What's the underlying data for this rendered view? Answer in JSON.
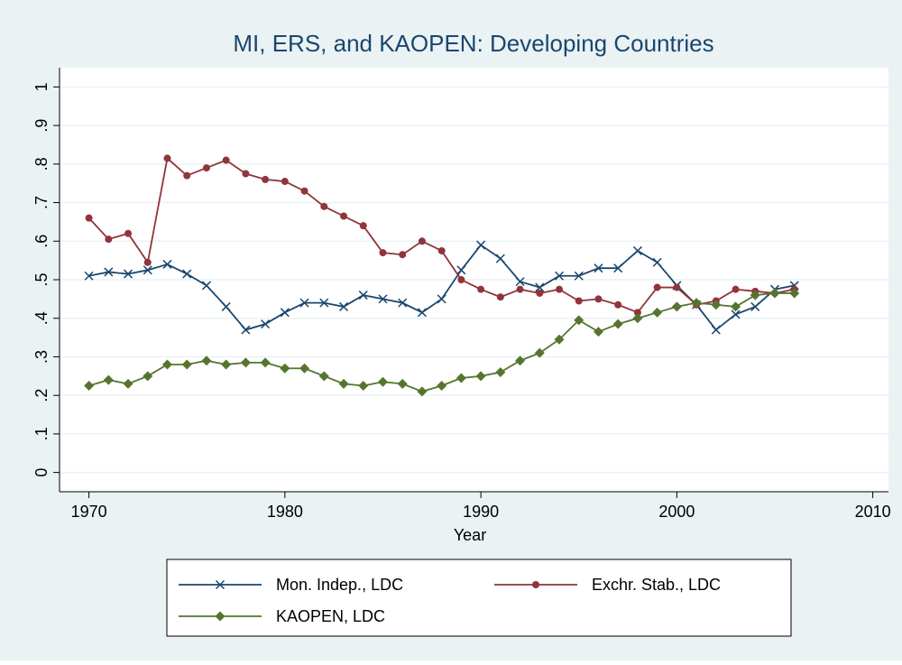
{
  "chart_data": {
    "type": "line",
    "title": "MI, ERS, and KAOPEN: Developing Countries",
    "x_label": "Year",
    "x": [
      1970,
      1971,
      1972,
      1973,
      1974,
      1975,
      1976,
      1977,
      1978,
      1979,
      1980,
      1981,
      1982,
      1983,
      1984,
      1985,
      1986,
      1987,
      1988,
      1989,
      1990,
      1991,
      1992,
      1993,
      1994,
      1995,
      1996,
      1997,
      1998,
      1999,
      2000,
      2001,
      2002,
      2003,
      2004,
      2005,
      2006
    ],
    "series": [
      {
        "name": "Mon. Indep., LDC",
        "color": "#1a476f",
        "marker": "x",
        "values": [
          0.51,
          0.52,
          0.515,
          0.525,
          0.54,
          0.515,
          0.485,
          0.43,
          0.37,
          0.385,
          0.415,
          0.44,
          0.44,
          0.43,
          0.46,
          0.45,
          0.44,
          0.415,
          0.45,
          0.525,
          0.59,
          0.555,
          0.495,
          0.48,
          0.51,
          0.51,
          0.53,
          0.53,
          0.575,
          0.545,
          0.485,
          0.435,
          0.37,
          0.41,
          0.43,
          0.475,
          0.485
        ]
      },
      {
        "name": "Exchr. Stab., LDC",
        "color": "#90353b",
        "marker": "circle",
        "values": [
          0.66,
          0.605,
          0.62,
          0.545,
          0.815,
          0.77,
          0.79,
          0.81,
          0.775,
          0.76,
          0.755,
          0.73,
          0.69,
          0.665,
          0.64,
          0.57,
          0.565,
          0.6,
          0.575,
          0.5,
          0.475,
          0.455,
          0.475,
          0.465,
          0.475,
          0.445,
          0.45,
          0.435,
          0.415,
          0.48,
          0.48,
          0.435,
          0.445,
          0.475,
          0.47,
          0.465,
          0.475
        ]
      },
      {
        "name": "KAOPEN, LDC",
        "color": "#55752f",
        "marker": "diamond",
        "values": [
          0.225,
          0.24,
          0.23,
          0.25,
          0.28,
          0.28,
          0.29,
          0.28,
          0.285,
          0.285,
          0.27,
          0.27,
          0.25,
          0.23,
          0.225,
          0.235,
          0.23,
          0.21,
          0.225,
          0.245,
          0.25,
          0.26,
          0.29,
          0.31,
          0.345,
          0.395,
          0.365,
          0.385,
          0.4,
          0.415,
          0.43,
          0.44,
          0.435,
          0.43,
          0.46,
          0.465,
          0.465
        ]
      }
    ],
    "xlim": [
      1968.5,
      2010.8
    ],
    "xticks": [
      1970,
      1980,
      1990,
      2000,
      2010
    ],
    "ylim": [
      -0.05,
      1.05
    ],
    "yticks": [
      0,
      {
        "value": 0.1,
        "label": ".1"
      },
      {
        "value": 0.2,
        "label": ".2"
      },
      {
        "value": 0.3,
        "label": ".3"
      },
      {
        "value": 0.4,
        "label": ".4"
      },
      {
        "value": 0.5,
        "label": ".5"
      },
      {
        "value": 0.6,
        "label": ".6"
      },
      {
        "value": 0.7,
        "label": ".7"
      },
      {
        "value": 0.8,
        "label": ".8"
      },
      {
        "value": 0.9,
        "label": ".9"
      },
      1
    ],
    "grid": true,
    "legend": "bottom"
  }
}
